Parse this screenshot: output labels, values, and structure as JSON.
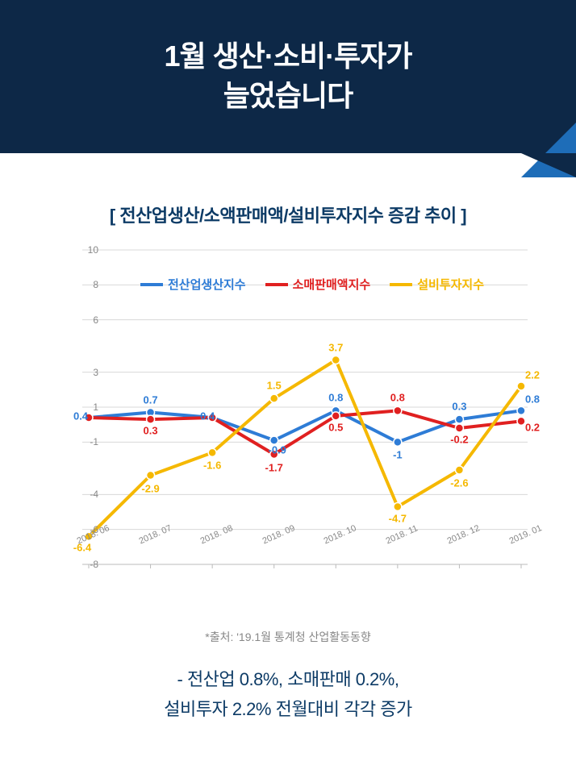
{
  "header": {
    "title_line1": "1월 생산·소비·투자가",
    "title_line2": "늘었습니다",
    "bg_color": "#0d2847",
    "accent_color": "#1e6db8"
  },
  "chart": {
    "title": "[ 전산업생산/소액판매액/설비투자지수 증감 추이 ]",
    "type": "line",
    "ylim": [
      -8,
      10
    ],
    "yticks": [
      -8,
      -6,
      -4,
      -1,
      1,
      3,
      6,
      8,
      10
    ],
    "categories": [
      "2018. 06",
      "2018. 07",
      "2018. 08",
      "2018. 09",
      "2018. 10",
      "2018. 11",
      "2018. 12",
      "2019. 01"
    ],
    "series": [
      {
        "name": "전산업생산지수",
        "color": "#2e7cd6",
        "values": [
          0.4,
          0.7,
          0.4,
          -0.9,
          0.8,
          -1,
          0.3,
          0.8
        ],
        "label_offsets": [
          {
            "dx": -10,
            "dy": -2
          },
          {
            "dx": 0,
            "dy": -16
          },
          {
            "dx": -6,
            "dy": -2
          },
          {
            "dx": 4,
            "dy": 12
          },
          {
            "dx": 0,
            "dy": -16
          },
          {
            "dx": 0,
            "dy": 16
          },
          {
            "dx": 0,
            "dy": -16
          },
          {
            "dx": 14,
            "dy": -14
          }
        ]
      },
      {
        "name": "소매판매액지수",
        "color": "#e02020",
        "values": [
          0.4,
          0.3,
          0.4,
          -1.7,
          0.5,
          0.8,
          -0.2,
          0.2
        ],
        "label_offsets": [
          {
            "dx": 0,
            "dy": 0,
            "skip": true
          },
          {
            "dx": 0,
            "dy": 14
          },
          {
            "dx": 0,
            "dy": 0,
            "skip": true
          },
          {
            "dx": 0,
            "dy": 16
          },
          {
            "dx": 0,
            "dy": 14
          },
          {
            "dx": 0,
            "dy": -16
          },
          {
            "dx": 0,
            "dy": 14
          },
          {
            "dx": 14,
            "dy": 8
          }
        ]
      },
      {
        "name": "설비투자지수",
        "color": "#f5b800",
        "values": [
          -6.4,
          -2.9,
          -1.6,
          1.5,
          3.7,
          -4.7,
          -2.6,
          2.2
        ],
        "label_offsets": [
          {
            "dx": -8,
            "dy": 14
          },
          {
            "dx": 0,
            "dy": 16
          },
          {
            "dx": 0,
            "dy": 16
          },
          {
            "dx": 0,
            "dy": -16
          },
          {
            "dx": 0,
            "dy": -16
          },
          {
            "dx": 0,
            "dy": 14
          },
          {
            "dx": 0,
            "dy": 16
          },
          {
            "dx": 14,
            "dy": -14
          }
        ]
      }
    ],
    "line_width": 4,
    "marker_radius": 5,
    "grid_color": "#d8d8d8",
    "axis_color": "#bbbbbb",
    "label_fontsize": 13,
    "source": "*출처: '19.1월 통계청 산업활동동향"
  },
  "summary": {
    "line1": "- 전산업 0.8%, 소매판매 0.2%,",
    "line2": "설비투자 2.2% 전월대비 각각 증가"
  }
}
